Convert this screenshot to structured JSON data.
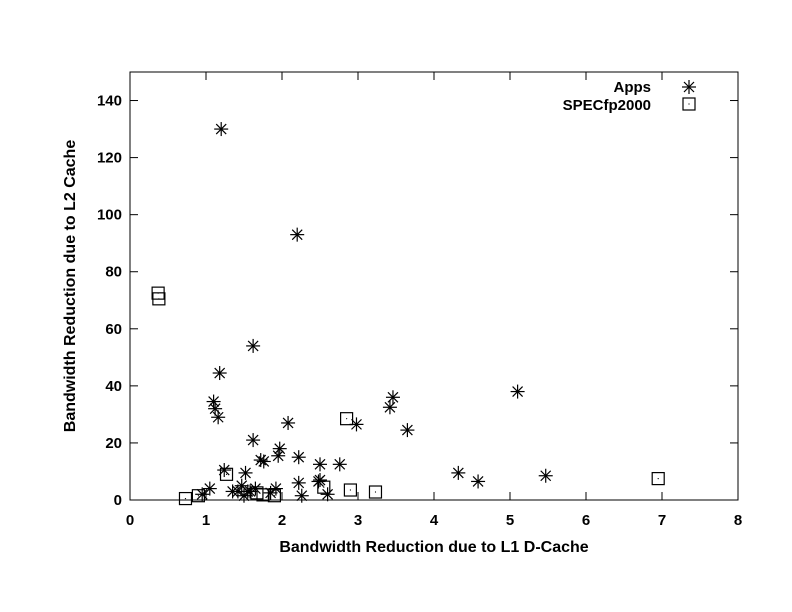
{
  "chart_data": {
    "type": "scatter",
    "title": "",
    "xlabel": "Bandwidth Reduction due to L1 D-Cache",
    "ylabel": "Bandwidth Reduction due to L2 Cache",
    "xlim": [
      0,
      8
    ],
    "ylim": [
      0,
      150
    ],
    "xticks": [
      0,
      1,
      2,
      3,
      4,
      5,
      6,
      7,
      8
    ],
    "yticks": [
      0,
      20,
      40,
      60,
      80,
      100,
      120,
      140
    ],
    "grid": false,
    "legend_position": "top-right",
    "series": [
      {
        "name": "Apps",
        "marker": "asterisk",
        "points": [
          [
            1.2,
            130
          ],
          [
            2.2,
            93
          ],
          [
            1.62,
            54
          ],
          [
            1.18,
            44.5
          ],
          [
            1.1,
            34.5
          ],
          [
            1.12,
            32
          ],
          [
            1.16,
            29
          ],
          [
            2.08,
            27
          ],
          [
            2.98,
            26.5
          ],
          [
            3.65,
            24.5
          ],
          [
            1.62,
            21
          ],
          [
            3.46,
            36
          ],
          [
            3.42,
            32.5
          ],
          [
            5.1,
            38
          ],
          [
            1.97,
            18
          ],
          [
            1.95,
            15.5
          ],
          [
            2.22,
            15
          ],
          [
            1.72,
            14
          ],
          [
            1.76,
            13.5
          ],
          [
            2.5,
            12.5
          ],
          [
            2.76,
            12.5
          ],
          [
            1.24,
            10.5
          ],
          [
            1.52,
            9.5
          ],
          [
            4.32,
            9.5
          ],
          [
            5.47,
            8.5
          ],
          [
            2.5,
            7
          ],
          [
            2.48,
            6.5
          ],
          [
            2.22,
            6
          ],
          [
            4.58,
            6.5
          ],
          [
            1.47,
            5
          ],
          [
            1.05,
            4
          ],
          [
            1.65,
            4
          ],
          [
            1.92,
            4
          ],
          [
            1.35,
            3
          ],
          [
            1.42,
            3
          ],
          [
            1.55,
            3
          ],
          [
            1.58,
            3
          ],
          [
            1.85,
            2.5
          ],
          [
            2.6,
            2
          ],
          [
            0.95,
            2
          ],
          [
            2.26,
            1.5
          ],
          [
            1.5,
            1.5
          ]
        ]
      },
      {
        "name": "SPECfp2000",
        "marker": "square",
        "points": [
          [
            0.37,
            72.5
          ],
          [
            0.38,
            70.5
          ],
          [
            2.85,
            28.5
          ],
          [
            1.27,
            9
          ],
          [
            6.95,
            7.5
          ],
          [
            2.55,
            4.5
          ],
          [
            2.9,
            3.5
          ],
          [
            3.23,
            2.8
          ],
          [
            1.67,
            2.5
          ],
          [
            1.75,
            1.8
          ],
          [
            1.9,
            1.5
          ],
          [
            0.9,
            1.5
          ],
          [
            0.73,
            0.5
          ]
        ]
      }
    ]
  }
}
